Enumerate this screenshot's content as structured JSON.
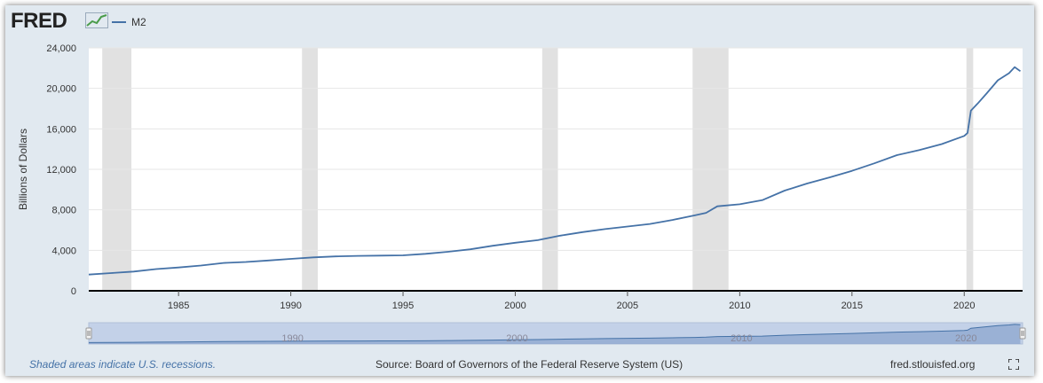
{
  "header": {
    "logo": "FRED"
  },
  "footer": {
    "note": "Shaded areas indicate U.S. recessions.",
    "source": "Source: Board of Governors of the Federal Reserve System (US)",
    "site": "fred.stlouisfed.org"
  },
  "icons": {
    "logo_graph": "mini-line-graph-icon",
    "fullscreen": "fullscreen-icon"
  },
  "colors": {
    "series": "#4572a7",
    "recession": "#e1e1e1",
    "background": "#e1e9f0"
  },
  "chart_data": {
    "type": "line",
    "title": "",
    "xlabel": "",
    "ylabel": "Billions of Dollars",
    "xlim": [
      1981.0,
      2022.6
    ],
    "ylim": [
      0,
      24000
    ],
    "y_ticks": [
      0,
      4000,
      8000,
      12000,
      16000,
      20000,
      24000
    ],
    "y_tick_labels": [
      "0",
      "4,000",
      "8,000",
      "12,000",
      "16,000",
      "20,000",
      "24,000"
    ],
    "x_ticks": [
      1985,
      1990,
      1995,
      2000,
      2005,
      2010,
      2015,
      2020
    ],
    "x_tick_labels": [
      "1985",
      "1990",
      "1995",
      "2000",
      "2005",
      "2010",
      "2015",
      "2020"
    ],
    "grid": true,
    "legend": "top-left",
    "recessions": [
      [
        1981.6,
        1982.9
      ],
      [
        1990.5,
        1991.2
      ],
      [
        2001.2,
        2001.9
      ],
      [
        2007.9,
        2009.5
      ],
      [
        2020.1,
        2020.4
      ]
    ],
    "navigator_labels": [
      "1990",
      "2000",
      "2010",
      "2020"
    ],
    "series": [
      {
        "name": "M2",
        "x": [
          1981.0,
          1982.0,
          1983.0,
          1984.0,
          1985.0,
          1986.0,
          1987.0,
          1988.0,
          1989.0,
          1990.0,
          1991.0,
          1992.0,
          1993.0,
          1994.0,
          1995.0,
          1996.0,
          1997.0,
          1998.0,
          1999.0,
          2000.0,
          2001.0,
          2002.0,
          2003.0,
          2004.0,
          2005.0,
          2006.0,
          2007.0,
          2008.0,
          2008.5,
          2009.0,
          2010.0,
          2011.0,
          2012.0,
          2013.0,
          2014.0,
          2015.0,
          2016.0,
          2017.0,
          2018.0,
          2019.0,
          2020.0,
          2020.15,
          2020.3,
          2020.6,
          2021.0,
          2021.5,
          2022.0,
          2022.25,
          2022.5
        ],
        "values": [
          1600,
          1750,
          1900,
          2150,
          2300,
          2500,
          2750,
          2850,
          3000,
          3150,
          3300,
          3400,
          3450,
          3480,
          3500,
          3650,
          3850,
          4100,
          4450,
          4750,
          5000,
          5450,
          5800,
          6100,
          6350,
          6600,
          7000,
          7450,
          7700,
          8350,
          8550,
          8950,
          9900,
          10600,
          11200,
          11850,
          12600,
          13400,
          13900,
          14500,
          15300,
          15600,
          17800,
          18500,
          19500,
          20800,
          21500,
          22100,
          21700
        ]
      }
    ]
  }
}
